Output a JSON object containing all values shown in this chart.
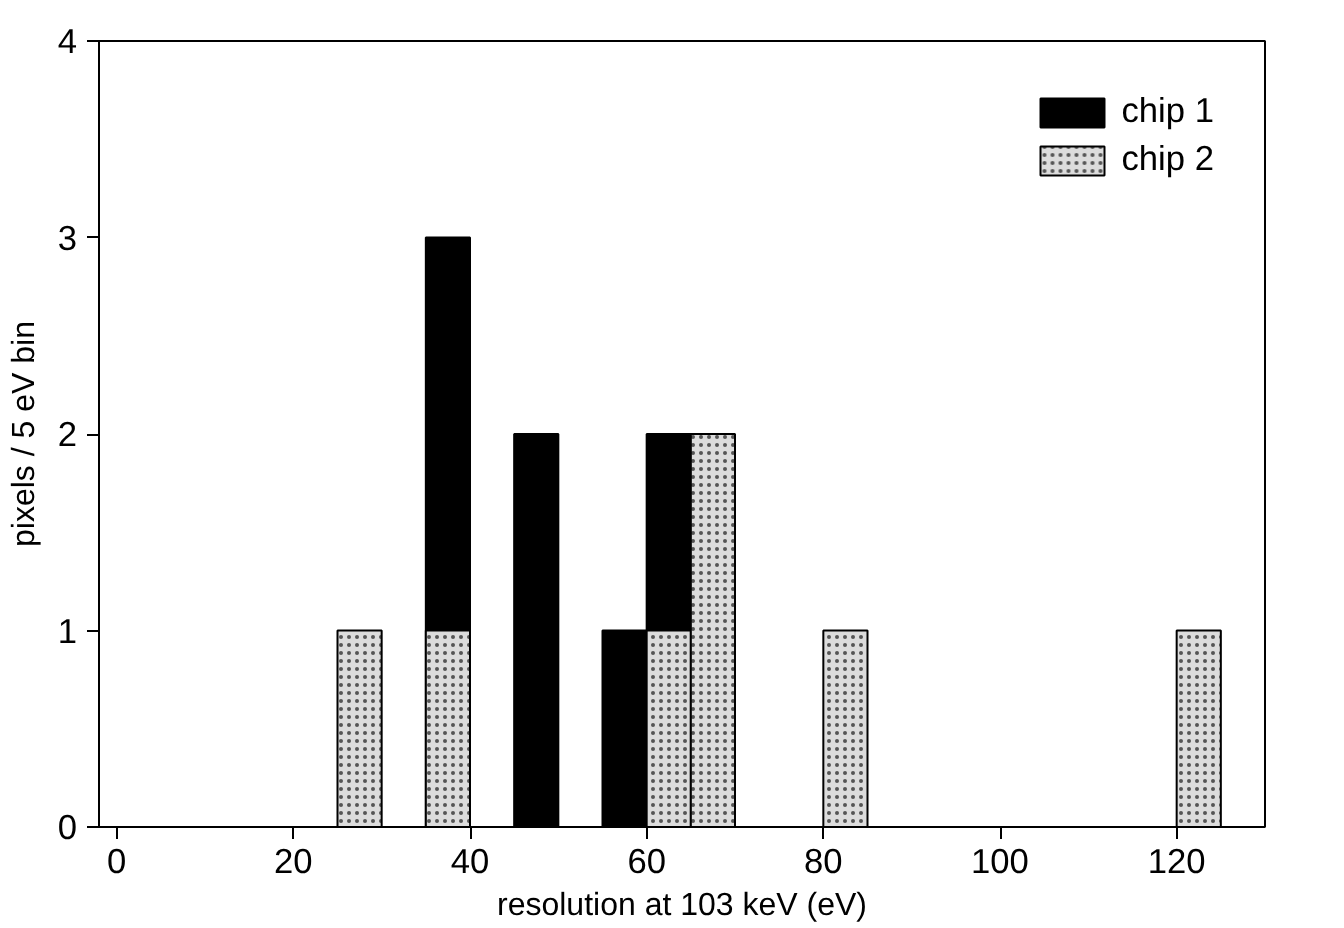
{
  "chart_data": {
    "type": "histogram",
    "xlabel": "resolution at 103 keV (eV)",
    "ylabel": "pixels / 5 eV bin",
    "bins": [
      25,
      30,
      35,
      40,
      45,
      50,
      55,
      60,
      65,
      70,
      75,
      80,
      85,
      90,
      95,
      100,
      105,
      110,
      115,
      120,
      125
    ],
    "series": [
      {
        "name": "chip 1",
        "color": "#000000",
        "values": [
          0,
          0,
          3,
          0,
          2,
          0,
          1,
          2,
          0,
          0,
          0,
          0,
          0,
          0,
          0,
          0,
          0,
          0,
          0,
          0
        ]
      },
      {
        "name": "chip 2",
        "color": "#dcdcdc",
        "values": [
          1,
          0,
          1,
          0,
          0,
          0,
          0,
          1,
          2,
          0,
          0,
          1,
          0,
          0,
          0,
          0,
          0,
          0,
          0,
          1
        ]
      }
    ],
    "xlim": [
      -2,
      130
    ],
    "xticks": [
      0,
      20,
      40,
      60,
      80,
      100,
      120
    ],
    "ylim": [
      0,
      4
    ],
    "yticks": [
      0,
      1,
      2,
      3,
      4
    ],
    "grid": false,
    "legend": "top right"
  }
}
